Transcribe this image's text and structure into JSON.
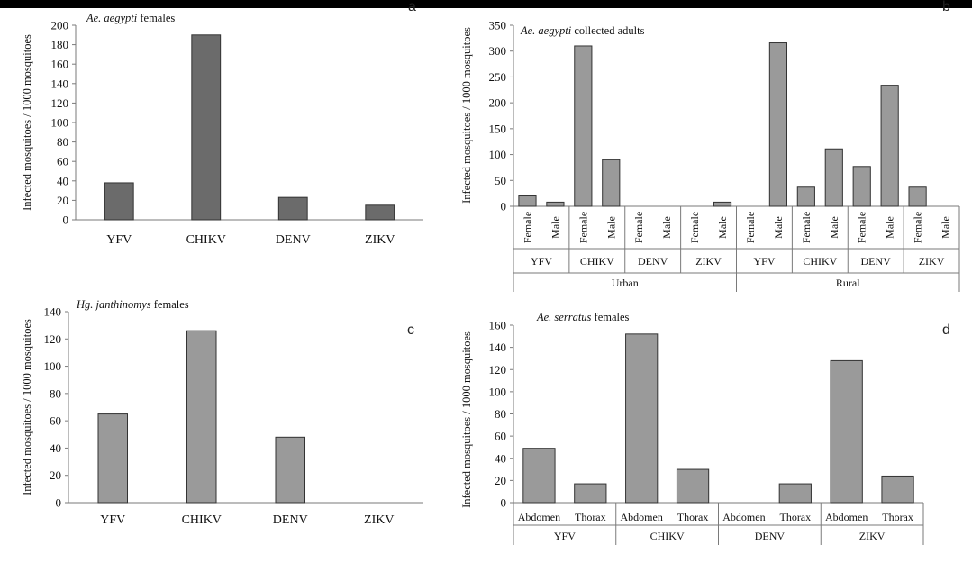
{
  "colors": {
    "bar_dark": "#6b6b6b",
    "bar_light": "#9a9a9a",
    "bar_edge": "#333333"
  },
  "chart_data": [
    {
      "id": "a",
      "type": "bar",
      "panel_letter": "a",
      "title_italic": "Ae. aegypti",
      "title_rest": " females",
      "ylabel": "Infected mosquitoes  / 1000 mosquitoes",
      "categories": [
        "YFV",
        "CHIKV",
        "DENV",
        "ZIKV"
      ],
      "values": [
        38,
        190,
        23,
        15
      ],
      "ylim": [
        0,
        200
      ],
      "yticks": [
        0,
        20,
        40,
        60,
        80,
        100,
        120,
        140,
        160,
        180,
        200
      ],
      "bar_color": "#6b6b6b"
    },
    {
      "id": "b",
      "type": "bar",
      "panel_letter": "b",
      "title_italic": "Ae. aegypti",
      "title_rest": " collected  adults",
      "ylabel": "Infected mosquitoes  / 1000 mosquitoes",
      "categories": [
        "Female",
        "Male",
        "Female",
        "Male",
        "Female",
        "Male",
        "Female",
        "Male",
        "Female",
        "Male",
        "Female",
        "Male",
        "Female",
        "Male",
        "Female",
        "Male"
      ],
      "values": [
        20,
        8,
        310,
        90,
        0,
        0,
        0,
        8,
        0,
        316,
        37,
        111,
        77,
        234,
        37,
        0
      ],
      "groups": [
        "YFV",
        "CHIKV",
        "DENV",
        "ZIKV",
        "YFV",
        "CHIKV",
        "DENV",
        "ZIKV"
      ],
      "supergroups": [
        "Urban",
        "Rural"
      ],
      "ylim": [
        0,
        350
      ],
      "yticks": [
        0,
        50,
        100,
        150,
        200,
        250,
        300,
        350
      ],
      "bar_color": "#9a9a9a"
    },
    {
      "id": "c",
      "type": "bar",
      "panel_letter": "c",
      "title_italic": "Hg. janthinomys",
      "title_rest": " females",
      "ylabel": "Infected mosquitoes  / 1000 mosquitoes",
      "categories": [
        "YFV",
        "CHIKV",
        "DENV",
        "ZIKV"
      ],
      "values": [
        65,
        126,
        48,
        0
      ],
      "ylim": [
        0,
        140
      ],
      "yticks": [
        0,
        20,
        40,
        60,
        80,
        100,
        120,
        140
      ],
      "bar_color": "#9a9a9a"
    },
    {
      "id": "d",
      "type": "bar",
      "panel_letter": "d",
      "title_italic": "Ae. serratus",
      "title_rest": " females",
      "ylabel": "Infected mosquitoes  / 1000 mosquitoes",
      "categories": [
        "Abdomen",
        "Thorax",
        "Abdomen",
        "Thorax",
        "Abdomen",
        "Thorax",
        "Abdomen",
        "Thorax"
      ],
      "values": [
        49,
        17,
        152,
        30,
        0,
        17,
        128,
        24
      ],
      "groups": [
        "YFV",
        "CHIKV",
        "DENV",
        "ZIKV"
      ],
      "ylim": [
        0,
        160
      ],
      "yticks": [
        0,
        20,
        40,
        60,
        80,
        100,
        120,
        140,
        160
      ],
      "bar_color": "#9a9a9a"
    }
  ]
}
